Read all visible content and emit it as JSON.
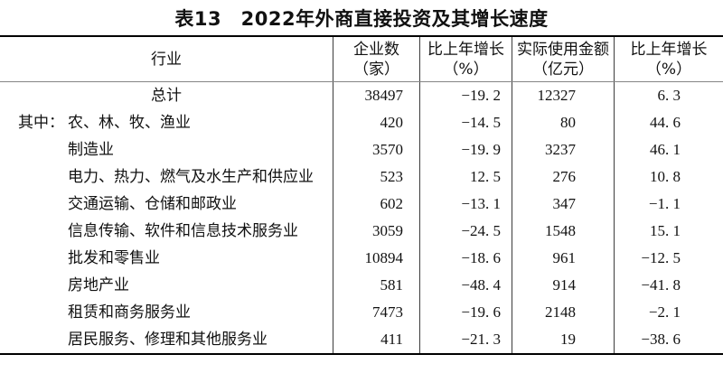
{
  "title": "表13　2022年外商直接投资及其增长速度",
  "colors": {
    "background": "#ffffff",
    "text": "#111111",
    "thick_border": "#000000",
    "column_divider": "#3c3c3c",
    "header_rule": "#858585"
  },
  "table": {
    "columns": [
      {
        "line1": "行业",
        "line2": ""
      },
      {
        "line1": "企业数",
        "line2": "（家）"
      },
      {
        "line1": "比上年增长",
        "line2": "（%）"
      },
      {
        "line1": "实际使用金额",
        "line2": "（亿元）"
      },
      {
        "line1": "比上年增长",
        "line2": "（%）"
      }
    ],
    "rows": [
      {
        "prefix": "",
        "industry": "总计",
        "align": "center",
        "enterprises": "38497",
        "growth_enterprises": "-19.2",
        "amount": "12327",
        "growth_amount": "6.3"
      },
      {
        "prefix": "其中：",
        "industry": "农、林、牧、渔业",
        "align": "indent",
        "enterprises": "420",
        "growth_enterprises": "-14.5",
        "amount": "80",
        "growth_amount": "44.6"
      },
      {
        "prefix": "",
        "industry": "制造业",
        "align": "indent",
        "enterprises": "3570",
        "growth_enterprises": "-19.9",
        "amount": "3237",
        "growth_amount": "46.1"
      },
      {
        "prefix": "",
        "industry": "电力、热力、燃气及水生产和供应业",
        "align": "indent",
        "enterprises": "523",
        "growth_enterprises": "12.5",
        "amount": "276",
        "growth_amount": "10.8"
      },
      {
        "prefix": "",
        "industry": "交通运输、仓储和邮政业",
        "align": "indent",
        "enterprises": "602",
        "growth_enterprises": "-13.1",
        "amount": "347",
        "growth_amount": "-1.1"
      },
      {
        "prefix": "",
        "industry": "信息传输、软件和信息技术服务业",
        "align": "indent",
        "enterprises": "3059",
        "growth_enterprises": "-24.5",
        "amount": "1548",
        "growth_amount": "15.1"
      },
      {
        "prefix": "",
        "industry": "批发和零售业",
        "align": "indent",
        "enterprises": "10894",
        "growth_enterprises": "-18.6",
        "amount": "961",
        "growth_amount": "-12.5"
      },
      {
        "prefix": "",
        "industry": "房地产业",
        "align": "indent",
        "enterprises": "581",
        "growth_enterprises": "-48.4",
        "amount": "914",
        "growth_amount": "-41.8"
      },
      {
        "prefix": "",
        "industry": "租赁和商务服务业",
        "align": "indent",
        "enterprises": "7473",
        "growth_enterprises": "-19.6",
        "amount": "2148",
        "growth_amount": "-2.1"
      },
      {
        "prefix": "",
        "industry": "居民服务、修理和其他服务业",
        "align": "indent",
        "enterprises": "411",
        "growth_enterprises": "-21.3",
        "amount": "19",
        "growth_amount": "-38.6"
      }
    ]
  }
}
